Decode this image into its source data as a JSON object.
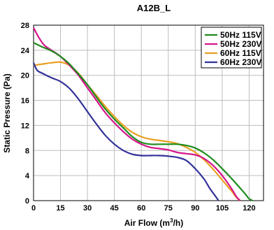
{
  "chart_data": {
    "type": "line",
    "title": "A12B_L",
    "xlabel_main": "Air Flow (m",
    "xlabel_sup": "3",
    "xlabel_tail": "/h)",
    "ylabel": "Static Pressure (Pa)",
    "xlim": [
      0,
      128
    ],
    "ylim": [
      0,
      28
    ],
    "xticks": [
      "0",
      "15",
      "30",
      "45",
      "60",
      "75",
      "90",
      "105",
      "120"
    ],
    "yticks": [
      "0",
      "4",
      "8",
      "12",
      "16",
      "20",
      "24",
      "28"
    ],
    "grid": true,
    "legend_position": "top-right",
    "series": [
      {
        "name": "50Hz 115V",
        "color": "#1e8c1e",
        "points": [
          [
            0,
            25.2
          ],
          [
            5,
            24.5
          ],
          [
            10,
            23.9
          ],
          [
            15,
            23.0
          ],
          [
            20,
            21.8
          ],
          [
            25,
            20.2
          ],
          [
            30,
            18.5
          ],
          [
            35,
            16.5
          ],
          [
            40,
            14.6
          ],
          [
            45,
            13.0
          ],
          [
            50,
            11.6
          ],
          [
            55,
            10.2
          ],
          [
            60,
            9.3
          ],
          [
            65,
            9.0
          ],
          [
            70,
            9.0
          ],
          [
            75,
            9.0
          ],
          [
            80,
            9.0
          ],
          [
            85,
            8.8
          ],
          [
            90,
            8.4
          ],
          [
            95,
            7.6
          ],
          [
            100,
            6.5
          ],
          [
            105,
            5.1
          ],
          [
            110,
            3.6
          ],
          [
            115,
            2.0
          ],
          [
            118,
            1.0
          ],
          [
            120,
            0.3
          ],
          [
            122,
            0
          ]
        ]
      },
      {
        "name": "50Hz 230V",
        "color": "#d6148a",
        "points": [
          [
            0,
            27.6
          ],
          [
            3,
            26.0
          ],
          [
            6,
            24.8
          ],
          [
            10,
            24.0
          ],
          [
            15,
            23.0
          ],
          [
            20,
            21.6
          ],
          [
            25,
            20.0
          ],
          [
            30,
            18.0
          ],
          [
            35,
            16.0
          ],
          [
            40,
            14.0
          ],
          [
            45,
            12.4
          ],
          [
            50,
            11.0
          ],
          [
            55,
            9.8
          ],
          [
            60,
            9.0
          ],
          [
            65,
            8.5
          ],
          [
            70,
            8.3
          ],
          [
            75,
            8.1
          ],
          [
            80,
            7.7
          ],
          [
            85,
            7.5
          ],
          [
            90,
            7.3
          ],
          [
            95,
            6.7
          ],
          [
            100,
            5.6
          ],
          [
            105,
            4.0
          ],
          [
            110,
            2.0
          ],
          [
            113,
            0.6
          ],
          [
            115,
            0
          ]
        ]
      },
      {
        "name": "60Hz 115V",
        "color": "#e8a020",
        "points": [
          [
            0,
            21.6
          ],
          [
            5,
            21.8
          ],
          [
            10,
            22.0
          ],
          [
            15,
            22.1
          ],
          [
            20,
            21.6
          ],
          [
            25,
            20.3
          ],
          [
            30,
            18.5
          ],
          [
            35,
            16.8
          ],
          [
            40,
            15.0
          ],
          [
            45,
            13.4
          ],
          [
            50,
            12.0
          ],
          [
            55,
            10.9
          ],
          [
            60,
            10.2
          ],
          [
            65,
            9.8
          ],
          [
            70,
            9.6
          ],
          [
            75,
            9.4
          ],
          [
            80,
            9.1
          ],
          [
            85,
            8.5
          ],
          [
            90,
            7.7
          ],
          [
            95,
            6.5
          ],
          [
            100,
            5.0
          ],
          [
            105,
            3.3
          ],
          [
            110,
            1.6
          ],
          [
            113,
            0.5
          ],
          [
            115,
            0
          ]
        ]
      },
      {
        "name": "60Hz 230V",
        "color": "#333399",
        "points": [
          [
            0,
            22.0
          ],
          [
            2,
            20.8
          ],
          [
            5,
            20.3
          ],
          [
            10,
            19.6
          ],
          [
            15,
            19.0
          ],
          [
            20,
            17.9
          ],
          [
            25,
            16.2
          ],
          [
            30,
            14.2
          ],
          [
            35,
            12.2
          ],
          [
            40,
            10.4
          ],
          [
            45,
            9.0
          ],
          [
            50,
            8.0
          ],
          [
            55,
            7.4
          ],
          [
            60,
            7.2
          ],
          [
            65,
            7.2
          ],
          [
            70,
            7.2
          ],
          [
            75,
            7.1
          ],
          [
            80,
            6.9
          ],
          [
            85,
            6.4
          ],
          [
            90,
            5.1
          ],
          [
            95,
            3.4
          ],
          [
            98,
            2.0
          ],
          [
            101,
            0.8
          ],
          [
            103,
            0
          ]
        ]
      }
    ]
  }
}
